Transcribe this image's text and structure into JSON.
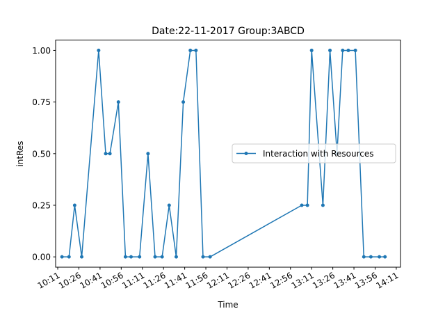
{
  "chart_data": {
    "type": "line",
    "title": "Date:22-11-2017  Group:3ABCD",
    "xlabel": "Time",
    "ylabel": "intRes",
    "x_tick_labels": [
      "10:11",
      "10:26",
      "10:41",
      "10:56",
      "11:11",
      "11:26",
      "11:41",
      "11:56",
      "12:11",
      "12:26",
      "12:41",
      "12:56",
      "13:11",
      "13:26",
      "13:41",
      "13:56",
      "14:11"
    ],
    "y_tick_labels": [
      "0.00",
      "0.25",
      "0.50",
      "0.75",
      "1.00"
    ],
    "x_tick_minutes": [
      0,
      15,
      30,
      45,
      60,
      75,
      90,
      105,
      120,
      135,
      150,
      165,
      180,
      195,
      210,
      225,
      240
    ],
    "y_ticks": [
      0,
      0.25,
      0.5,
      0.75,
      1.0
    ],
    "xlim_minutes": [
      -1.5,
      243
    ],
    "ylim": [
      -0.05,
      1.05
    ],
    "legend": {
      "position": "center-right"
    },
    "series": [
      {
        "name": "Interaction with Resources",
        "color": "#1f77b4",
        "x_minutes": [
          3,
          8,
          12,
          17,
          29,
          34,
          37,
          43,
          48,
          52,
          58,
          64,
          69,
          74,
          79,
          84,
          89,
          94,
          98,
          103,
          108,
          173,
          177,
          180,
          188,
          193,
          198,
          202,
          206,
          211,
          217,
          222,
          228,
          232
        ],
        "values": [
          0,
          0,
          0.25,
          0,
          1.0,
          0.5,
          0.5,
          0.75,
          0,
          0,
          0,
          0.5,
          0,
          0,
          0.25,
          0,
          0.75,
          1.0,
          1.0,
          0,
          0,
          0.25,
          0.25,
          1.0,
          0.25,
          1.0,
          0.5,
          1.0,
          1.0,
          1.0,
          0,
          0,
          0,
          0
        ]
      }
    ]
  }
}
